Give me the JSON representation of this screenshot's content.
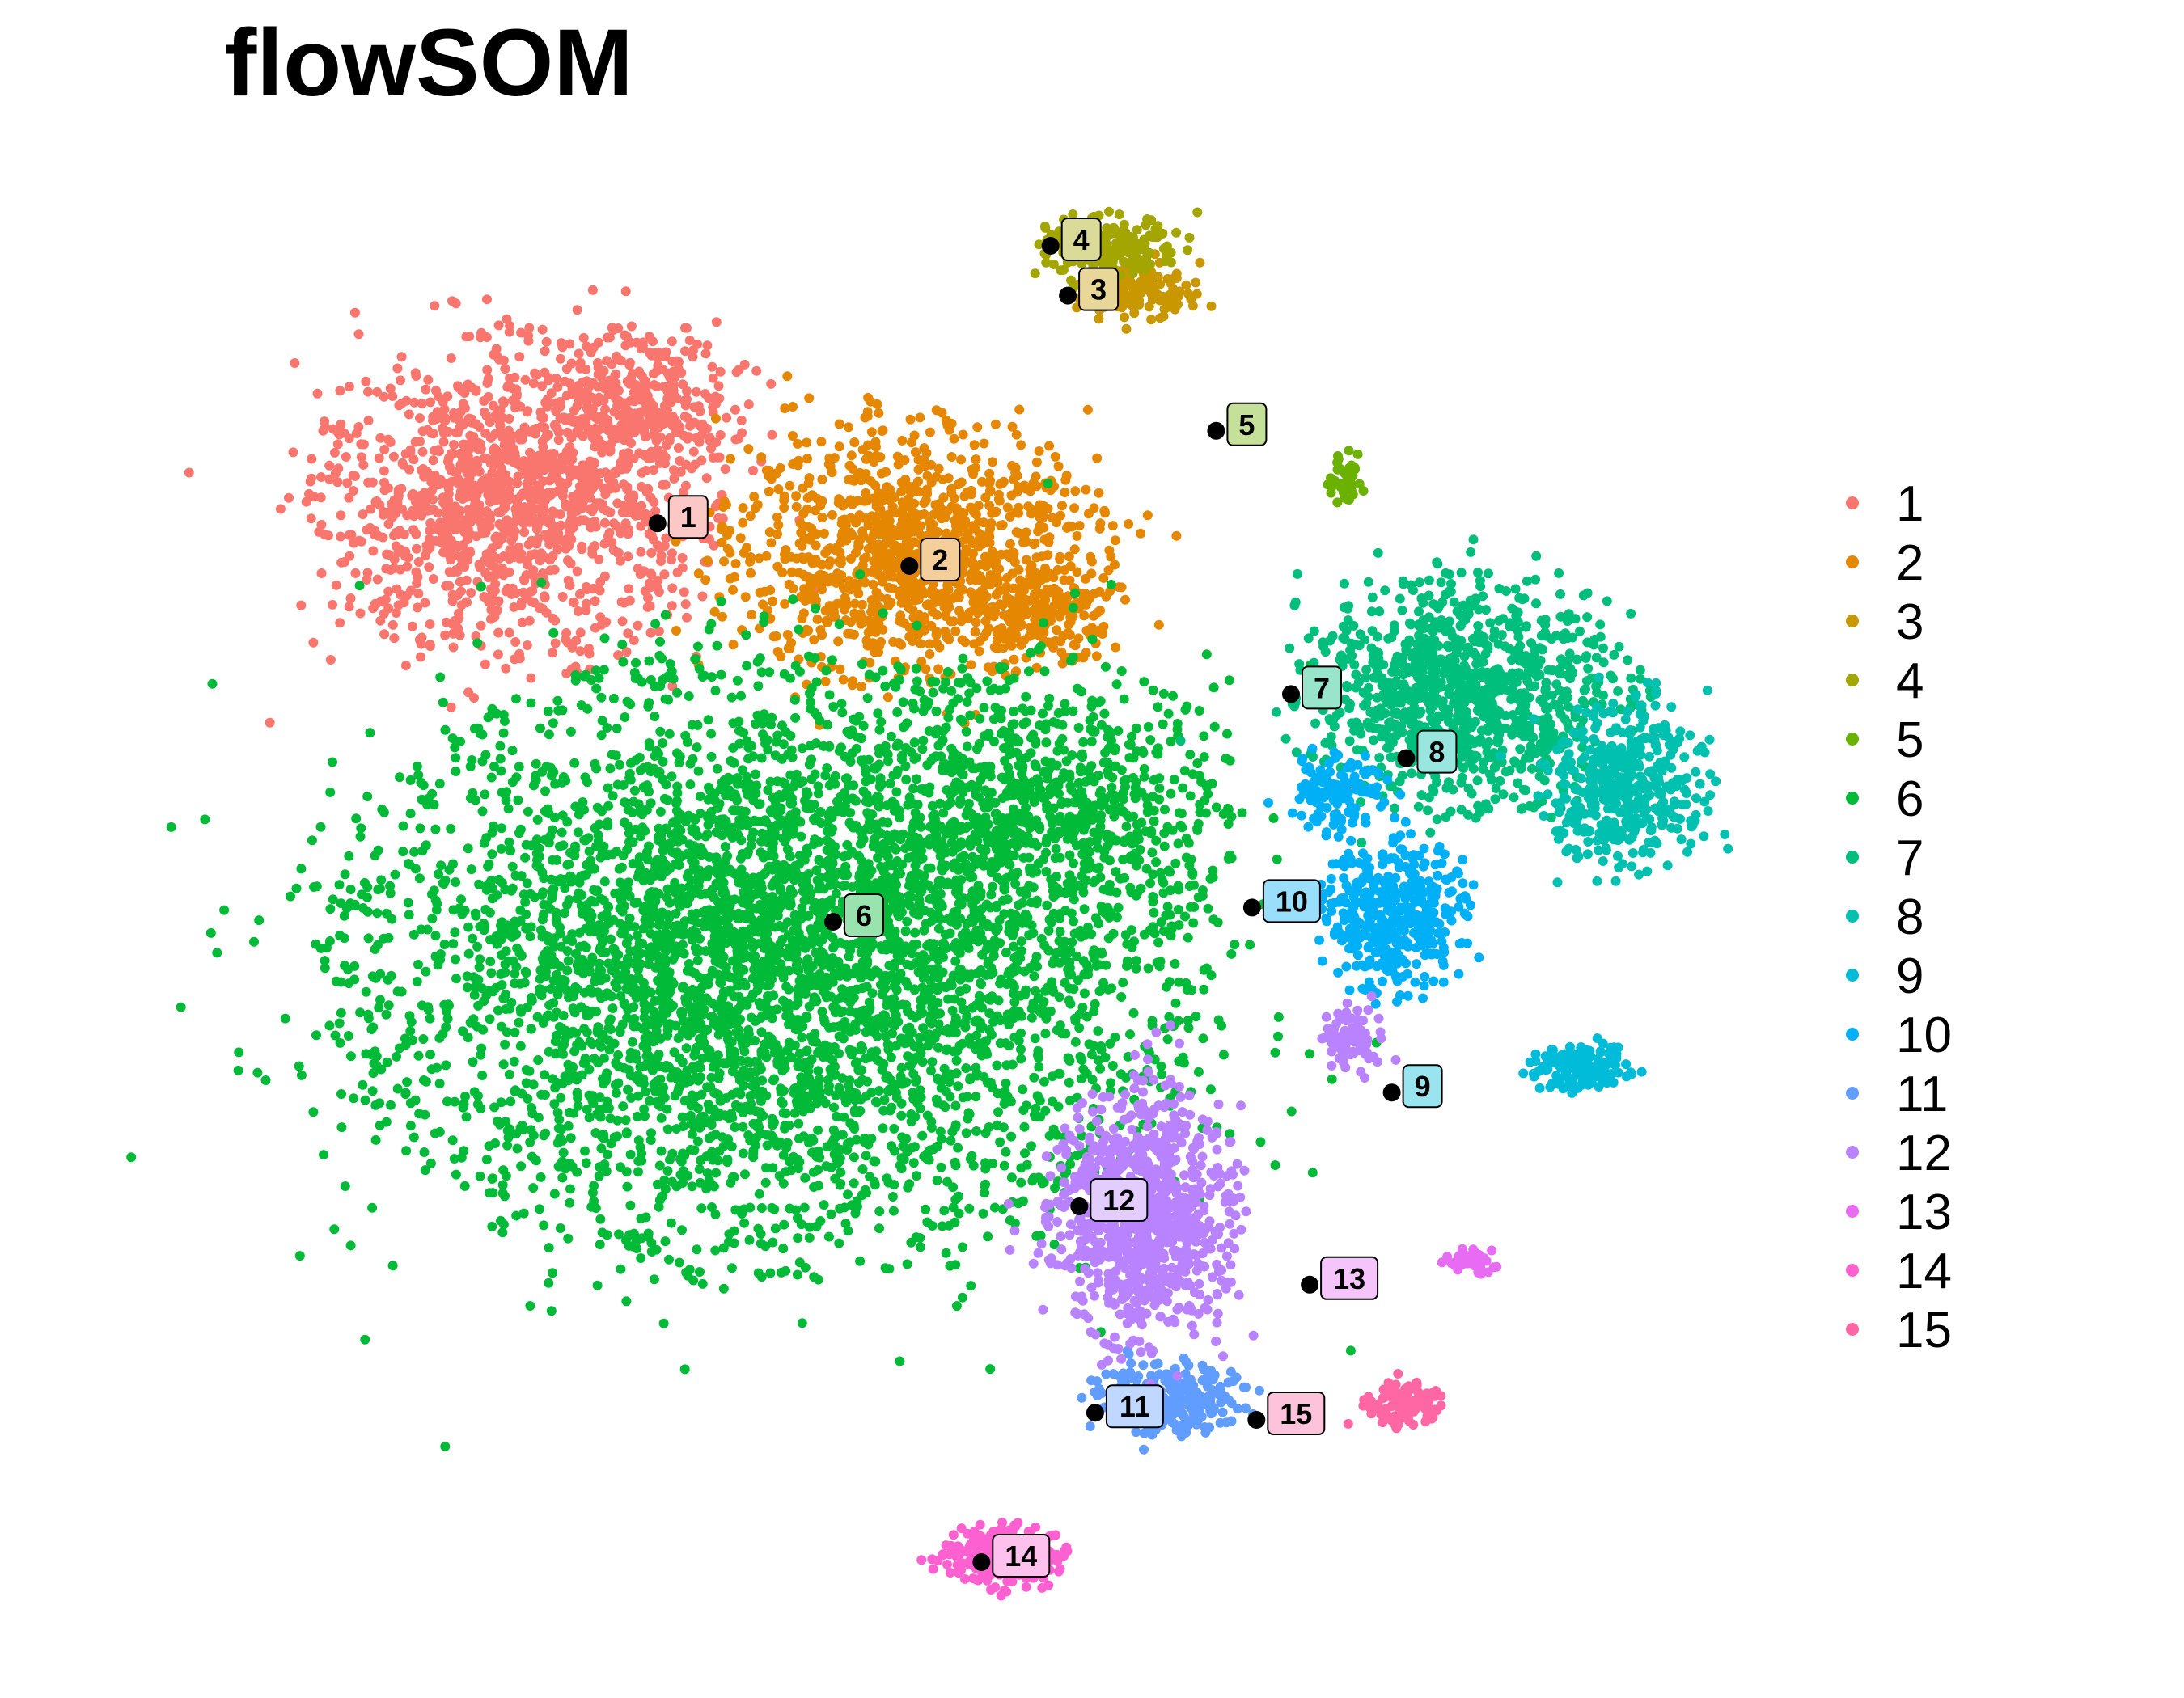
{
  "chart_data": {
    "type": "scatter",
    "title": "flowSOM",
    "xlabel": "",
    "ylabel": "",
    "axes_visible": false,
    "grid": false,
    "legend_position": "right",
    "xlim": [
      0,
      100
    ],
    "ylim": [
      0,
      100
    ],
    "clusters": [
      {
        "id": "1",
        "label": "1",
        "color": "#F8766D",
        "center": [
          26.0,
          78.0
        ]
      },
      {
        "id": "2",
        "label": "2",
        "color": "#E58700",
        "center": [
          43.5,
          75.0
        ]
      },
      {
        "id": "3",
        "label": "3",
        "color": "#C99800",
        "center": [
          54.5,
          94.0
        ]
      },
      {
        "id": "4",
        "label": "4",
        "color": "#A3A500",
        "center": [
          53.3,
          97.5
        ]
      },
      {
        "id": "5",
        "label": "5",
        "color": "#6BB100",
        "center": [
          64.8,
          84.5
        ]
      },
      {
        "id": "6",
        "label": "6",
        "color": "#00BA38",
        "center": [
          38.2,
          50.0
        ]
      },
      {
        "id": "7",
        "label": "7",
        "color": "#00BF7D",
        "center": [
          70.0,
          66.0
        ]
      },
      {
        "id": "8",
        "label": "8",
        "color": "#00C0AF",
        "center": [
          78.0,
          61.5
        ]
      },
      {
        "id": "9",
        "label": "9",
        "color": "#00BCD8",
        "center": [
          77.0,
          38.0
        ]
      },
      {
        "id": "10",
        "label": "10",
        "color": "#00B0F6",
        "center": [
          67.3,
          51.0
        ]
      },
      {
        "id": "11",
        "label": "11",
        "color": "#619CFF",
        "center": [
          56.4,
          15.5
        ]
      },
      {
        "id": "12",
        "label": "12",
        "color": "#B983FF",
        "center": [
          55.3,
          30.0
        ]
      },
      {
        "id": "13",
        "label": "13",
        "color": "#E76BF3",
        "center": [
          71.3,
          24.5
        ]
      },
      {
        "id": "14",
        "label": "14",
        "color": "#FD61D1",
        "center": [
          48.5,
          5.0
        ]
      },
      {
        "id": "15",
        "label": "15",
        "color": "#FF67A4",
        "center": [
          67.6,
          15.0
        ]
      }
    ]
  }
}
